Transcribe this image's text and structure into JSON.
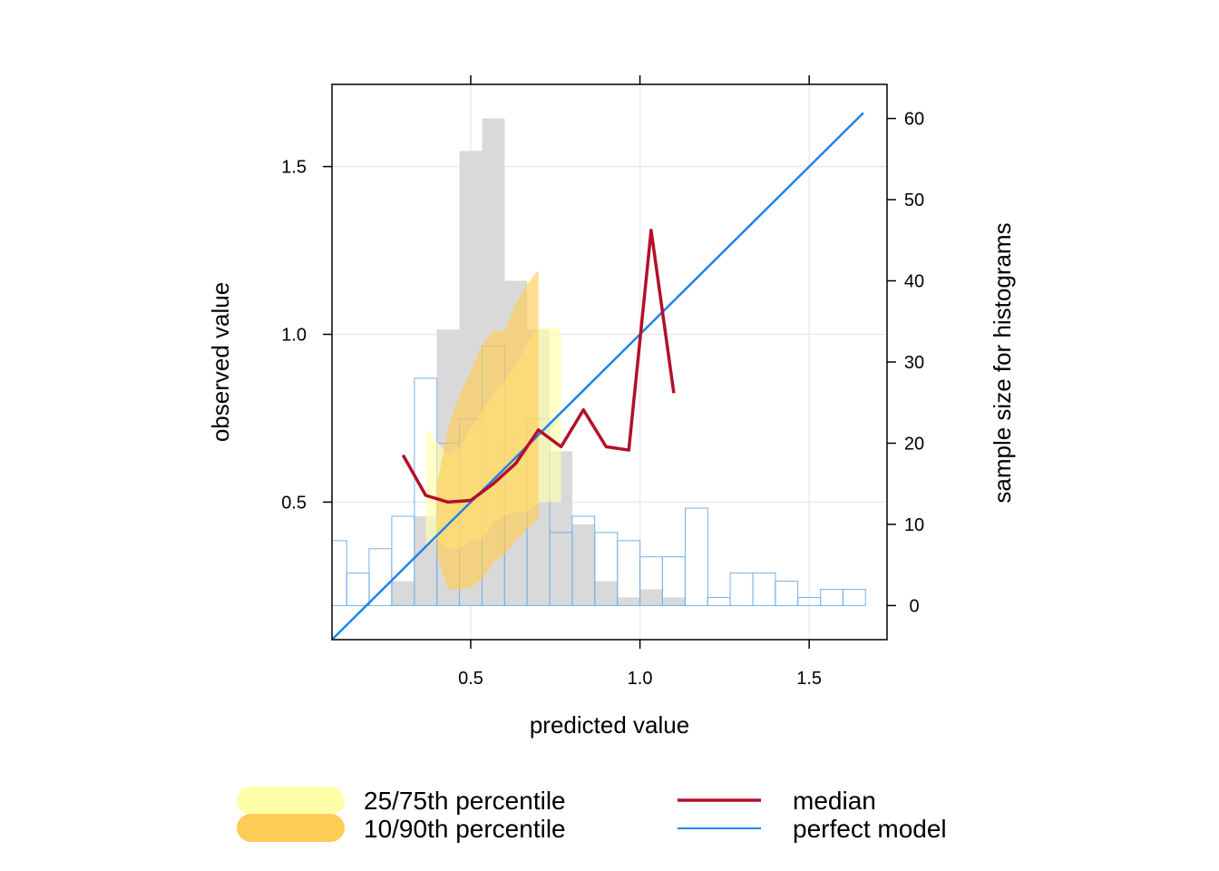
{
  "chart_data": {
    "type": "conditional-quantile",
    "xlabel": "predicted value",
    "ylabel": "observed value",
    "y2label": "sample size for histograms",
    "xlim": [
      0.09,
      1.73
    ],
    "ylim": [
      0.09,
      1.745
    ],
    "y2lim": [
      -4.2,
      64.2
    ],
    "x_ticks": [
      0.5,
      1.0,
      1.5
    ],
    "x_tick_labels": [
      "0.5",
      "1.0",
      "1.5"
    ],
    "y_ticks": [
      0.5,
      1.0,
      1.5
    ],
    "y_tick_labels": [
      "0.5",
      "1.0",
      "1.5"
    ],
    "y2_ticks": [
      0,
      10,
      20,
      30,
      40,
      50,
      60
    ],
    "y2_tick_labels": [
      "0",
      "10",
      "20",
      "30",
      "40",
      "50",
      "60"
    ],
    "grid": true,
    "colors": {
      "q25_75": "#FFFFAA",
      "q10_90": "#FFCC55",
      "median": "#B40F2A",
      "perfect": "#1C85E8",
      "obs_hist_fill": "#D9D9D9",
      "pred_hist_stroke": "#74B1E8",
      "grid": "#EBEBEB"
    },
    "median": {
      "x": [
        0.3,
        0.367,
        0.433,
        0.5,
        0.567,
        0.633,
        0.7,
        0.767,
        0.833,
        0.9,
        0.967,
        1.033,
        1.1
      ],
      "y": [
        0.64,
        0.52,
        0.5,
        0.505,
        0.555,
        0.615,
        0.715,
        0.665,
        0.775,
        0.665,
        0.655,
        1.31,
        0.825
      ]
    },
    "perfect_model": {
      "x": [
        0.09,
        1.66
      ],
      "y": [
        0.09,
        1.66
      ]
    },
    "band_10_90": {
      "x": [
        0.4,
        0.433,
        0.467,
        0.5,
        0.533,
        0.567,
        0.6,
        0.633,
        0.667,
        0.7
      ],
      "lower": [
        0.34,
        0.24,
        0.24,
        0.245,
        0.27,
        0.32,
        0.345,
        0.385,
        0.42,
        0.45
      ],
      "upper": [
        0.55,
        0.72,
        0.82,
        0.89,
        0.97,
        1.01,
        1.01,
        1.09,
        1.15,
        1.19
      ]
    },
    "band_25_75": {
      "x": [
        0.367,
        0.4,
        0.433,
        0.467,
        0.5,
        0.533,
        0.567,
        0.6,
        0.633,
        0.667,
        0.7,
        0.733,
        0.767
      ],
      "lower": [
        0.36,
        0.39,
        0.36,
        0.36,
        0.39,
        0.39,
        0.44,
        0.46,
        0.47,
        0.47,
        0.5,
        0.5,
        0.5
      ],
      "upper": [
        0.72,
        0.68,
        0.64,
        0.66,
        0.72,
        0.77,
        0.82,
        0.86,
        0.91,
        0.97,
        1.02,
        1.02,
        1.02
      ]
    },
    "histograms": {
      "bin_width": 0.0667,
      "bin_centers": [
        0.1,
        0.167,
        0.233,
        0.3,
        0.367,
        0.433,
        0.5,
        0.567,
        0.633,
        0.7,
        0.767,
        0.833,
        0.9,
        0.967,
        1.033,
        1.1,
        1.167,
        1.233,
        1.3,
        1.367,
        1.433,
        1.5,
        1.567,
        1.633
      ],
      "observed_counts": [
        0,
        0,
        0,
        3,
        11,
        34,
        56,
        60,
        40,
        34,
        19,
        10,
        3,
        1,
        2,
        1,
        0,
        0,
        0,
        0,
        0,
        0,
        0,
        0
      ],
      "predicted_counts": [
        8,
        4,
        7,
        11,
        28,
        20,
        23,
        32,
        21,
        23,
        9,
        11,
        9,
        8,
        6,
        6,
        12,
        1,
        4,
        4,
        3,
        1,
        2,
        2
      ]
    },
    "legend": {
      "placement": "bottom",
      "items": [
        {
          "label": "25/75th percentile",
          "kind": "band",
          "color": "#FFFFAA"
        },
        {
          "label": "10/90th percentile",
          "kind": "band",
          "color": "#FFCC55"
        },
        {
          "label": "median",
          "kind": "line",
          "color": "#B40F2A"
        },
        {
          "label": "perfect model",
          "kind": "line",
          "color": "#1C85E8"
        }
      ]
    }
  }
}
